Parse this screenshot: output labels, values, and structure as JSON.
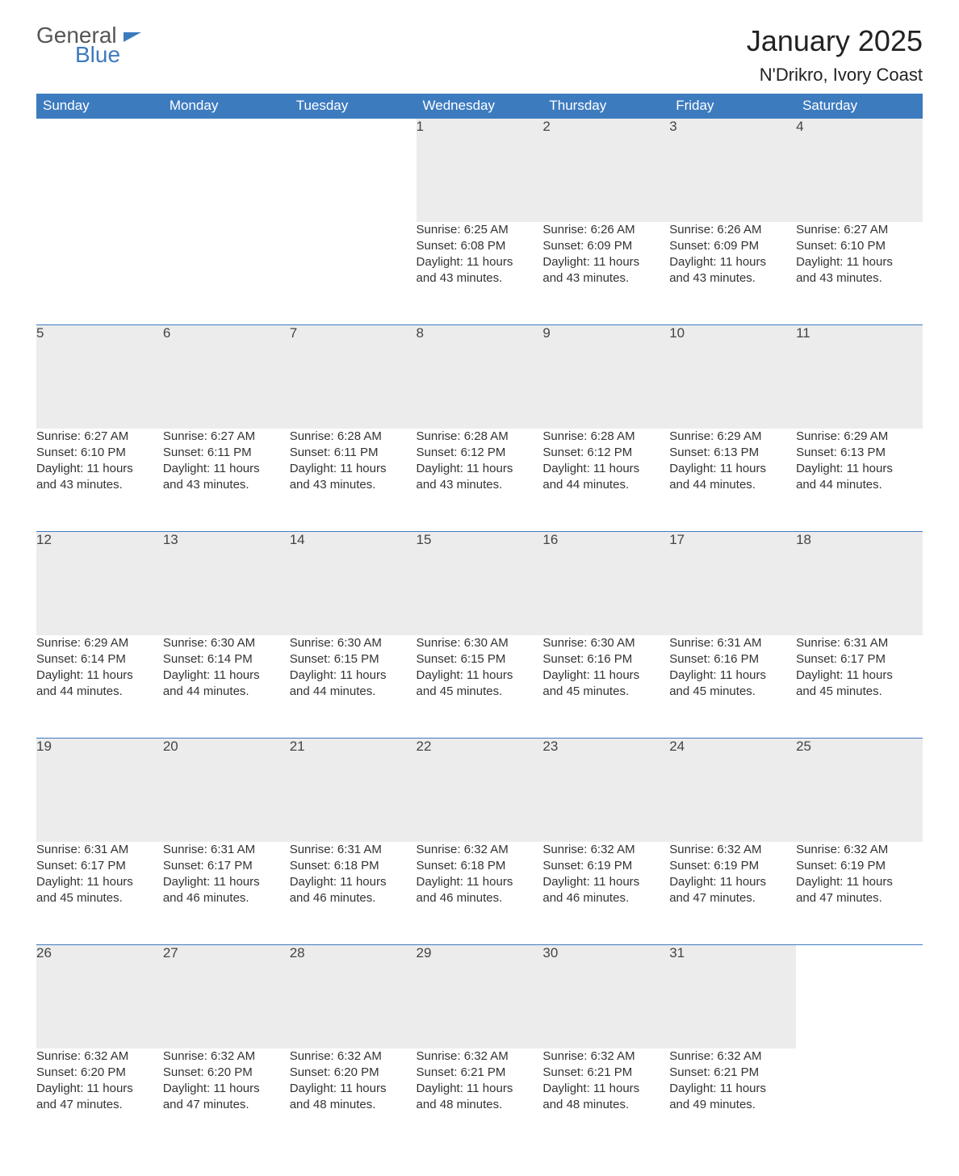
{
  "logo": {
    "text1": "General",
    "text2": "Blue"
  },
  "title": "January 2025",
  "location": "N'Drikro, Ivory Coast",
  "colors": {
    "header_bg": "#3d7bbf",
    "header_text": "#ffffff",
    "daynum_bg": "#ececec",
    "rule": "#3d7bbf",
    "page_bg": "#ffffff",
    "text": "#333333"
  },
  "day_headers": [
    "Sunday",
    "Monday",
    "Tuesday",
    "Wednesday",
    "Thursday",
    "Friday",
    "Saturday"
  ],
  "weeks": [
    {
      "nums": [
        "",
        "",
        "",
        "1",
        "2",
        "3",
        "4"
      ],
      "cells": [
        null,
        null,
        null,
        {
          "sunrise": "Sunrise: 6:25 AM",
          "sunset": "Sunset: 6:08 PM",
          "day1": "Daylight: 11 hours",
          "day2": "and 43 minutes."
        },
        {
          "sunrise": "Sunrise: 6:26 AM",
          "sunset": "Sunset: 6:09 PM",
          "day1": "Daylight: 11 hours",
          "day2": "and 43 minutes."
        },
        {
          "sunrise": "Sunrise: 6:26 AM",
          "sunset": "Sunset: 6:09 PM",
          "day1": "Daylight: 11 hours",
          "day2": "and 43 minutes."
        },
        {
          "sunrise": "Sunrise: 6:27 AM",
          "sunset": "Sunset: 6:10 PM",
          "day1": "Daylight: 11 hours",
          "day2": "and 43 minutes."
        }
      ]
    },
    {
      "nums": [
        "5",
        "6",
        "7",
        "8",
        "9",
        "10",
        "11"
      ],
      "cells": [
        {
          "sunrise": "Sunrise: 6:27 AM",
          "sunset": "Sunset: 6:10 PM",
          "day1": "Daylight: 11 hours",
          "day2": "and 43 minutes."
        },
        {
          "sunrise": "Sunrise: 6:27 AM",
          "sunset": "Sunset: 6:11 PM",
          "day1": "Daylight: 11 hours",
          "day2": "and 43 minutes."
        },
        {
          "sunrise": "Sunrise: 6:28 AM",
          "sunset": "Sunset: 6:11 PM",
          "day1": "Daylight: 11 hours",
          "day2": "and 43 minutes."
        },
        {
          "sunrise": "Sunrise: 6:28 AM",
          "sunset": "Sunset: 6:12 PM",
          "day1": "Daylight: 11 hours",
          "day2": "and 43 minutes."
        },
        {
          "sunrise": "Sunrise: 6:28 AM",
          "sunset": "Sunset: 6:12 PM",
          "day1": "Daylight: 11 hours",
          "day2": "and 44 minutes."
        },
        {
          "sunrise": "Sunrise: 6:29 AM",
          "sunset": "Sunset: 6:13 PM",
          "day1": "Daylight: 11 hours",
          "day2": "and 44 minutes."
        },
        {
          "sunrise": "Sunrise: 6:29 AM",
          "sunset": "Sunset: 6:13 PM",
          "day1": "Daylight: 11 hours",
          "day2": "and 44 minutes."
        }
      ]
    },
    {
      "nums": [
        "12",
        "13",
        "14",
        "15",
        "16",
        "17",
        "18"
      ],
      "cells": [
        {
          "sunrise": "Sunrise: 6:29 AM",
          "sunset": "Sunset: 6:14 PM",
          "day1": "Daylight: 11 hours",
          "day2": "and 44 minutes."
        },
        {
          "sunrise": "Sunrise: 6:30 AM",
          "sunset": "Sunset: 6:14 PM",
          "day1": "Daylight: 11 hours",
          "day2": "and 44 minutes."
        },
        {
          "sunrise": "Sunrise: 6:30 AM",
          "sunset": "Sunset: 6:15 PM",
          "day1": "Daylight: 11 hours",
          "day2": "and 44 minutes."
        },
        {
          "sunrise": "Sunrise: 6:30 AM",
          "sunset": "Sunset: 6:15 PM",
          "day1": "Daylight: 11 hours",
          "day2": "and 45 minutes."
        },
        {
          "sunrise": "Sunrise: 6:30 AM",
          "sunset": "Sunset: 6:16 PM",
          "day1": "Daylight: 11 hours",
          "day2": "and 45 minutes."
        },
        {
          "sunrise": "Sunrise: 6:31 AM",
          "sunset": "Sunset: 6:16 PM",
          "day1": "Daylight: 11 hours",
          "day2": "and 45 minutes."
        },
        {
          "sunrise": "Sunrise: 6:31 AM",
          "sunset": "Sunset: 6:17 PM",
          "day1": "Daylight: 11 hours",
          "day2": "and 45 minutes."
        }
      ]
    },
    {
      "nums": [
        "19",
        "20",
        "21",
        "22",
        "23",
        "24",
        "25"
      ],
      "cells": [
        {
          "sunrise": "Sunrise: 6:31 AM",
          "sunset": "Sunset: 6:17 PM",
          "day1": "Daylight: 11 hours",
          "day2": "and 45 minutes."
        },
        {
          "sunrise": "Sunrise: 6:31 AM",
          "sunset": "Sunset: 6:17 PM",
          "day1": "Daylight: 11 hours",
          "day2": "and 46 minutes."
        },
        {
          "sunrise": "Sunrise: 6:31 AM",
          "sunset": "Sunset: 6:18 PM",
          "day1": "Daylight: 11 hours",
          "day2": "and 46 minutes."
        },
        {
          "sunrise": "Sunrise: 6:32 AM",
          "sunset": "Sunset: 6:18 PM",
          "day1": "Daylight: 11 hours",
          "day2": "and 46 minutes."
        },
        {
          "sunrise": "Sunrise: 6:32 AM",
          "sunset": "Sunset: 6:19 PM",
          "day1": "Daylight: 11 hours",
          "day2": "and 46 minutes."
        },
        {
          "sunrise": "Sunrise: 6:32 AM",
          "sunset": "Sunset: 6:19 PM",
          "day1": "Daylight: 11 hours",
          "day2": "and 47 minutes."
        },
        {
          "sunrise": "Sunrise: 6:32 AM",
          "sunset": "Sunset: 6:19 PM",
          "day1": "Daylight: 11 hours",
          "day2": "and 47 minutes."
        }
      ]
    },
    {
      "nums": [
        "26",
        "27",
        "28",
        "29",
        "30",
        "31",
        ""
      ],
      "cells": [
        {
          "sunrise": "Sunrise: 6:32 AM",
          "sunset": "Sunset: 6:20 PM",
          "day1": "Daylight: 11 hours",
          "day2": "and 47 minutes."
        },
        {
          "sunrise": "Sunrise: 6:32 AM",
          "sunset": "Sunset: 6:20 PM",
          "day1": "Daylight: 11 hours",
          "day2": "and 47 minutes."
        },
        {
          "sunrise": "Sunrise: 6:32 AM",
          "sunset": "Sunset: 6:20 PM",
          "day1": "Daylight: 11 hours",
          "day2": "and 48 minutes."
        },
        {
          "sunrise": "Sunrise: 6:32 AM",
          "sunset": "Sunset: 6:21 PM",
          "day1": "Daylight: 11 hours",
          "day2": "and 48 minutes."
        },
        {
          "sunrise": "Sunrise: 6:32 AM",
          "sunset": "Sunset: 6:21 PM",
          "day1": "Daylight: 11 hours",
          "day2": "and 48 minutes."
        },
        {
          "sunrise": "Sunrise: 6:32 AM",
          "sunset": "Sunset: 6:21 PM",
          "day1": "Daylight: 11 hours",
          "day2": "and 49 minutes."
        },
        null
      ]
    }
  ]
}
